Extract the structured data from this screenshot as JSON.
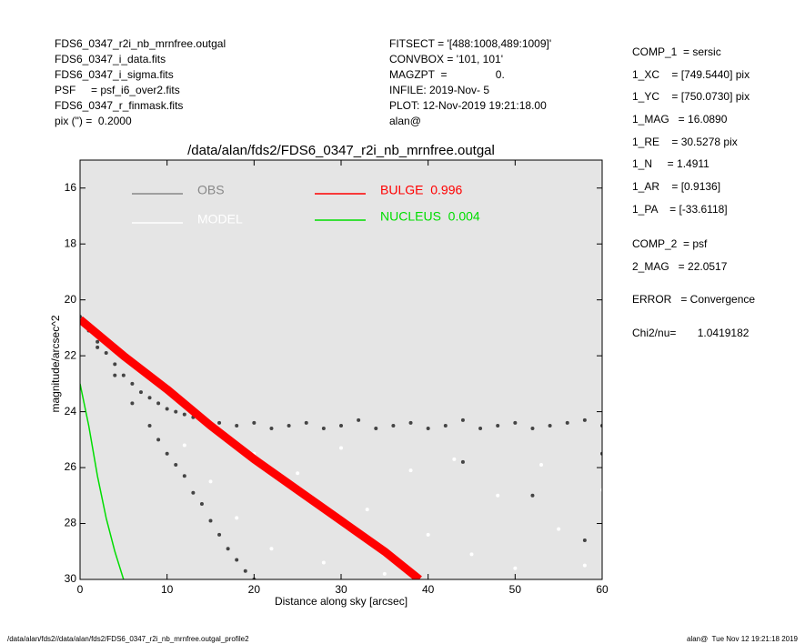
{
  "chart_data": {
    "type": "scatter",
    "title": "/data/alan/fds2/FDS6_0347_r2i_nb_mrnfree.outgal",
    "x_label": "Distance along sky [arcsec]",
    "y_label": "magnitude/arcsec^2",
    "header_left": [
      "FDS6_0347_r2i_nb_mrnfree.outgal",
      "FDS6_0347_i_data.fits",
      "FDS6_0347_i_sigma.fits",
      "PSF     = psf_i6_over2.fits",
      "FDS6_0347_r_finmask.fits",
      "pix (\") =  0.2000"
    ],
    "header_center": [
      "FITSECT = '[488:1008,489:1009]'",
      "CONVBOX = '101, 101'",
      "MAGZPT  =                0.",
      "INFILE: 2019-Nov- 5",
      "PLOT: 12-Nov-2019 19:21:18.00",
      "alan@"
    ],
    "side_panel": [
      "COMP_1  = sersic",
      "1_XC    = [749.5440] pix",
      "1_YC    = [750.0730] pix",
      "1_MAG   = 16.0890",
      "1_RE    = 30.5278 pix",
      "1_N     = 1.4911",
      "1_AR    = [0.9136]",
      "1_PA    = [-33.6118]",
      "COMP_2  = psf",
      "2_MAG   = 22.0517",
      "ERROR   = Convergence",
      "Chi2/nu=       1.0419182"
    ],
    "footer_left": "/data/alan/fds2//data/alan/fds2/FDS6_0347_r2i_nb_mrnfree.outgal_profile2",
    "footer_right": "alan@  Tue Nov 12 19:21:18 2019",
    "xlim": [
      0,
      60
    ],
    "ylim": [
      15,
      30
    ],
    "y_inverted": true,
    "xticks": [
      0,
      10,
      20,
      30,
      40,
      50,
      60
    ],
    "yticks": [
      16,
      18,
      20,
      22,
      24,
      26,
      28,
      30
    ],
    "background": "#e5e5e5",
    "series": [
      {
        "name": "OBS",
        "color": "#444444",
        "legend_color": "#888888",
        "style": "points",
        "x": [
          0,
          0.5,
          1,
          2,
          3,
          4,
          5,
          6,
          7,
          8,
          9,
          10,
          11,
          12,
          13,
          14,
          16,
          18,
          20,
          22,
          24,
          26,
          28,
          30,
          32,
          34,
          36,
          38,
          40,
          42,
          44,
          46,
          48,
          50,
          52,
          54,
          56,
          58,
          60,
          2,
          4,
          6,
          8,
          9,
          10,
          11,
          12,
          13,
          14,
          15,
          16,
          17,
          18,
          19,
          20,
          44,
          52,
          58,
          60
        ],
        "values": [
          20.6,
          20.9,
          21.1,
          21.5,
          21.9,
          22.3,
          22.7,
          23.0,
          23.3,
          23.5,
          23.7,
          23.9,
          24.0,
          24.1,
          24.2,
          24.3,
          24.4,
          24.5,
          24.4,
          24.6,
          24.5,
          24.4,
          24.6,
          24.5,
          24.3,
          24.6,
          24.5,
          24.4,
          24.6,
          24.5,
          24.3,
          24.6,
          24.5,
          24.4,
          24.6,
          24.5,
          24.4,
          24.3,
          24.5,
          21.7,
          22.7,
          23.7,
          24.5,
          25.0,
          25.5,
          25.9,
          26.3,
          26.9,
          27.3,
          27.9,
          28.4,
          28.9,
          29.3,
          29.7,
          30.0,
          25.8,
          27.0,
          28.6,
          25.5
        ]
      },
      {
        "name": "MODEL",
        "color": "#ffffff",
        "style": "points",
        "x": [
          12,
          15,
          18,
          20,
          22,
          25,
          28,
          30,
          33,
          35,
          38,
          40,
          43,
          45,
          48,
          50,
          53,
          55,
          58,
          60
        ],
        "values": [
          25.2,
          26.5,
          27.8,
          25.5,
          28.9,
          26.2,
          29.4,
          25.3,
          27.5,
          29.8,
          26.1,
          28.4,
          25.7,
          29.1,
          27.0,
          29.6,
          25.9,
          28.2,
          29.5,
          26.8
        ]
      },
      {
        "name": "BULGE  0.996",
        "color": "#ff0000",
        "style": "band",
        "x": [
          0,
          5,
          10,
          15,
          20,
          25,
          30,
          35,
          39
        ],
        "values": [
          20.7,
          22.0,
          23.2,
          24.5,
          25.7,
          26.8,
          27.9,
          29.0,
          30.0
        ]
      },
      {
        "name": "NUCLEUS  0.004",
        "color": "#00dd00",
        "style": "line",
        "x": [
          0,
          1,
          2,
          3,
          4,
          5
        ],
        "values": [
          23.0,
          24.5,
          26.3,
          27.8,
          29.0,
          30.0
        ]
      }
    ]
  }
}
